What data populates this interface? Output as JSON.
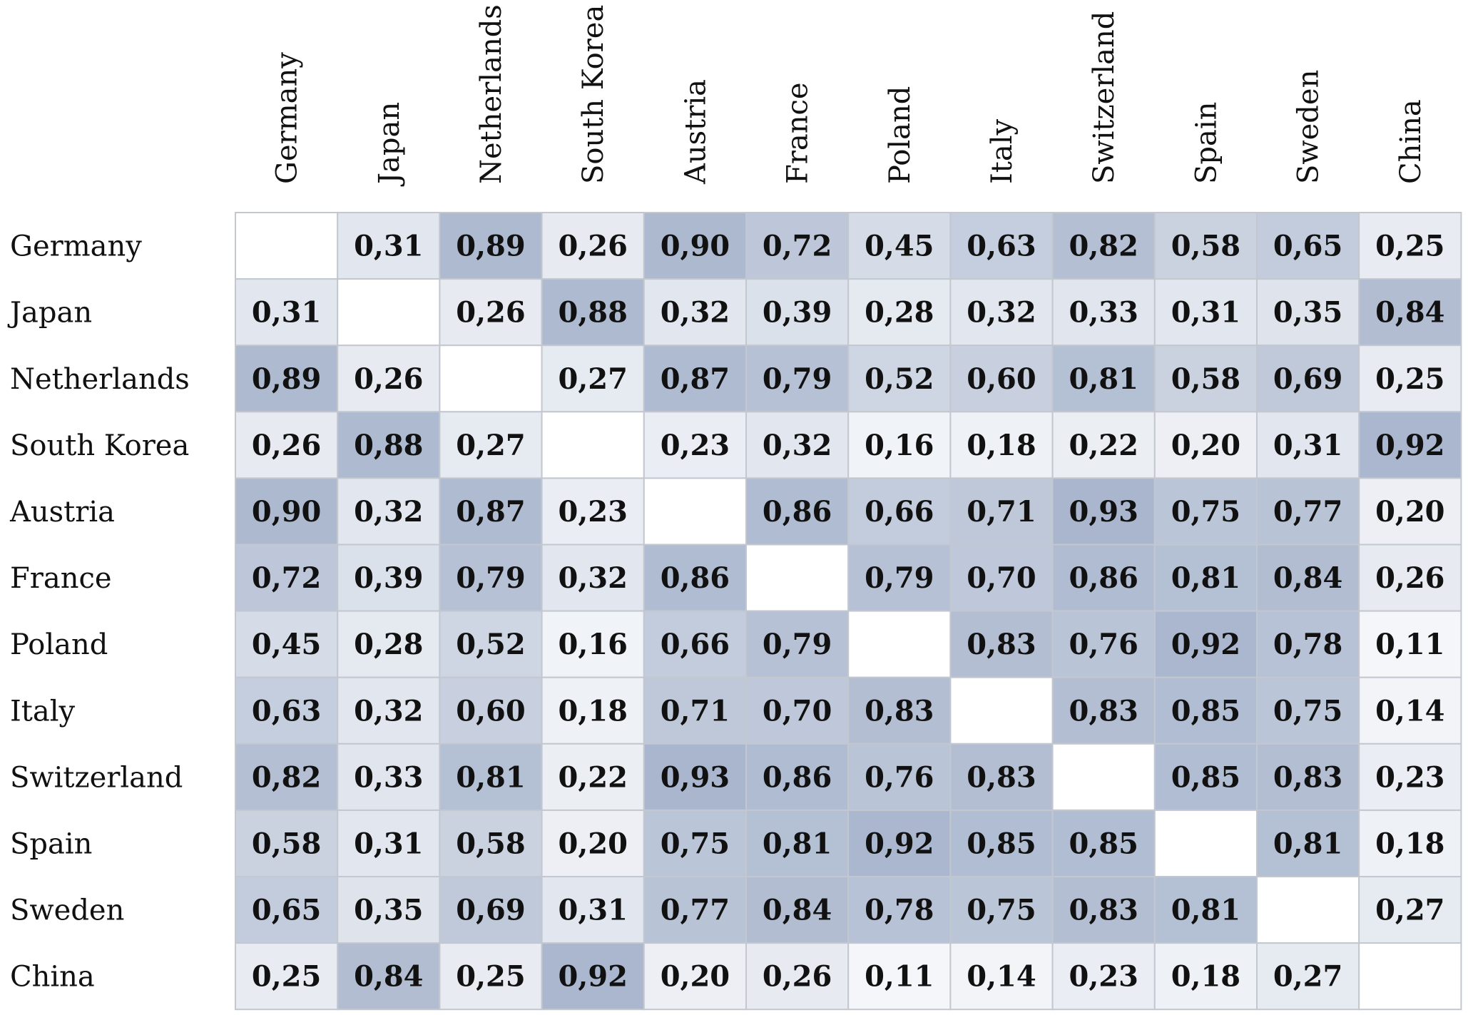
{
  "chart_data": {
    "type": "heatmap",
    "title": "",
    "xlabel": "",
    "ylabel": "",
    "countries": [
      "Germany",
      "Japan",
      "Netherlands",
      "South Korea",
      "Austria",
      "France",
      "Poland",
      "Italy",
      "Switzerland",
      "Spain",
      "Sweden",
      "China"
    ],
    "values": [
      [
        null,
        "0,31",
        "0,89",
        "0,26",
        "0,90",
        "0,72",
        "0,45",
        "0,63",
        "0,82",
        "0,58",
        "0,65",
        "0,25"
      ],
      [
        "0,31",
        null,
        "0,26",
        "0,88",
        "0,32",
        "0,39",
        "0,28",
        "0,32",
        "0,33",
        "0,31",
        "0,35",
        "0,84"
      ],
      [
        "0,89",
        "0,26",
        null,
        "0,27",
        "0,87",
        "0,79",
        "0,52",
        "0,60",
        "0,81",
        "0,58",
        "0,69",
        "0,25"
      ],
      [
        "0,26",
        "0,88",
        "0,27",
        null,
        "0,23",
        "0,32",
        "0,16",
        "0,18",
        "0,22",
        "0,20",
        "0,31",
        "0,92"
      ],
      [
        "0,90",
        "0,32",
        "0,87",
        "0,23",
        null,
        "0,86",
        "0,66",
        "0,71",
        "0,93",
        "0,75",
        "0,77",
        "0,20"
      ],
      [
        "0,72",
        "0,39",
        "0,79",
        "0,32",
        "0,86",
        null,
        "0,79",
        "0,70",
        "0,86",
        "0,81",
        "0,84",
        "0,26"
      ],
      [
        "0,45",
        "0,28",
        "0,52",
        "0,16",
        "0,66",
        "0,79",
        null,
        "0,83",
        "0,76",
        "0,92",
        "0,78",
        "0,11"
      ],
      [
        "0,63",
        "0,32",
        "0,60",
        "0,18",
        "0,71",
        "0,70",
        "0,83",
        null,
        "0,83",
        "0,85",
        "0,75",
        "0,14"
      ],
      [
        "0,82",
        "0,33",
        "0,81",
        "0,22",
        "0,93",
        "0,86",
        "0,76",
        "0,83",
        null,
        "0,85",
        "0,83",
        "0,23"
      ],
      [
        "0,58",
        "0,31",
        "0,58",
        "0,20",
        "0,75",
        "0,81",
        "0,92",
        "0,85",
        "0,85",
        null,
        "0,81",
        "0,18"
      ],
      [
        "0,65",
        "0,35",
        "0,69",
        "0,31",
        "0,77",
        "0,84",
        "0,78",
        "0,75",
        "0,83",
        "0,81",
        null,
        "0,27"
      ],
      [
        "0,25",
        "0,84",
        "0,25",
        "0,92",
        "0,20",
        "0,26",
        "0,11",
        "0,14",
        "0,23",
        "0,18",
        "0,27",
        null
      ]
    ],
    "color_scale": {
      "low": "#ffffff",
      "high": "#a3b1ca",
      "empty": "#ffffff",
      "border": "#c3c7cf"
    },
    "grid": true,
    "legend": "none"
  }
}
